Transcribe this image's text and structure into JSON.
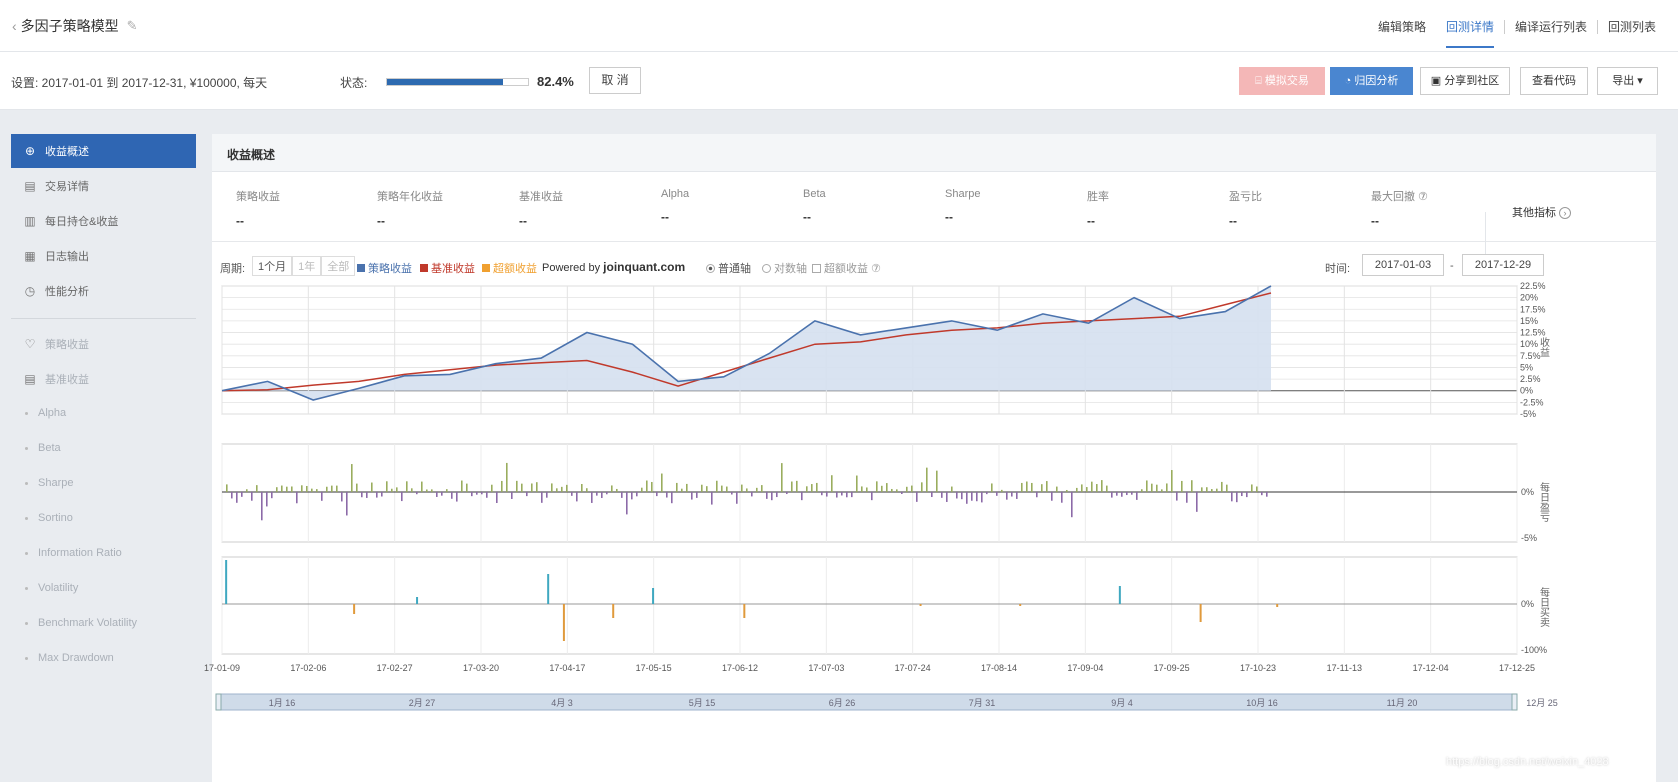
{
  "header": {
    "title": "多因子策略模型",
    "nav": [
      "编辑策略",
      "回测详情",
      "编译运行列表",
      "回测列表"
    ],
    "active_nav": 1
  },
  "settings": {
    "text": "设置:  2017-01-01 到 2017-12-31,  ¥100000,  每天",
    "status_label": "状态:",
    "progress": 0.824,
    "progress_text": "82.4%",
    "cancel_label": "取 消"
  },
  "toolbar": {
    "simulate_label": "模拟交易",
    "factor_label": "归因分析",
    "share_label": "分享到社区",
    "code_label": "查看代码",
    "export_label": "导出 ▾"
  },
  "sidebar": {
    "items": [
      {
        "label": "收益概述",
        "icon": "plus-circle-icon",
        "active": true
      },
      {
        "label": "交易详情",
        "icon": "document-icon"
      },
      {
        "label": "每日持仓&收益",
        "icon": "bar-chart-icon"
      },
      {
        "label": "日志输出",
        "icon": "log-icon"
      },
      {
        "label": "性能分析",
        "icon": "clock-icon"
      }
    ],
    "sub_items": [
      {
        "label": "策略收益",
        "icon": "bulb-icon"
      },
      {
        "label": "基准收益",
        "icon": "list-icon"
      }
    ],
    "dot_items": [
      "Alpha",
      "Beta",
      "Sharpe",
      "Sortino",
      "Information Ratio",
      "Volatility",
      "Benchmark Volatility",
      "Max Drawdown"
    ]
  },
  "panel": {
    "title": "收益概述",
    "metrics": [
      {
        "label": "策略收益",
        "value": "--"
      },
      {
        "label": "策略年化收益",
        "value": "--"
      },
      {
        "label": "基准收益",
        "value": "--"
      },
      {
        "label": "Alpha",
        "value": "--"
      },
      {
        "label": "Beta",
        "value": "--"
      },
      {
        "label": "Sharpe",
        "value": "--"
      },
      {
        "label": "胜率",
        "value": "--"
      },
      {
        "label": "盈亏比",
        "value": "--"
      },
      {
        "label": "最大回撤 ⑦",
        "value": "--"
      }
    ],
    "more_metrics": "其他指标",
    "controls": {
      "range_label": "周期:",
      "range_opts": [
        "1个月",
        "1年",
        "全部"
      ],
      "legend": [
        "策略收益",
        "基准收益",
        "超额收益"
      ],
      "powered": "Powered by",
      "brand": "joinquant.com",
      "axis_normal": "普通轴",
      "axis_log": "对数轴",
      "excess": "超额收益 ⑦",
      "time_label": "时间:",
      "date_from": "2017-01-03",
      "date_sep": "-",
      "date_to": "2017-12-29"
    },
    "right_labels": {
      "top": "收益",
      "mid": "每日盈亏",
      "bot": "每日买卖"
    }
  },
  "colors": {
    "strategy": "#4a72ad",
    "benchmark": "#c0392b",
    "excess": "#f0a030",
    "area": "#d5e0ef",
    "pos_bar": "#9aad5e",
    "neg_bar": "#8c6aa8",
    "buy_bar": "#3fa8c0",
    "sell_bar": "#e09a3c"
  },
  "chart_data": {
    "type": "line",
    "y_ticks": [
      "22.5%",
      "20%",
      "17.5%",
      "15%",
      "12.5%",
      "10%",
      "7.5%",
      "5%",
      "2.5%",
      "0%",
      "-2.5%",
      "-5%"
    ],
    "ylim": [
      -5,
      22.5
    ],
    "x_ticks": [
      "17-01-09",
      "17-02-06",
      "17-02-27",
      "17-03-20",
      "17-04-17",
      "17-05-15",
      "17-06-12",
      "17-07-03",
      "17-07-24",
      "17-08-14",
      "17-09-04",
      "17-09-25",
      "17-10-23",
      "17-11-13",
      "17-12-04",
      "17-12-25"
    ],
    "series": [
      {
        "name": "策略收益",
        "values": [
          0,
          2,
          -2,
          0.5,
          3.2,
          3.5,
          5.8,
          7,
          12.5,
          10,
          2,
          3,
          8,
          15,
          12,
          13.5,
          15,
          13,
          16.5,
          14.5,
          20,
          15.5,
          17,
          22.5
        ]
      },
      {
        "name": "基准收益",
        "values": [
          0,
          0.2,
          1.2,
          2,
          3.5,
          4.5,
          5.5,
          6,
          6.5,
          4,
          1,
          4,
          7,
          10,
          10.5,
          12,
          13,
          13.5,
          14.5,
          15,
          15.5,
          16,
          18.5,
          21
        ]
      }
    ],
    "mid_ylabels": [
      "0%",
      "-5%"
    ],
    "bot_ylabels": [
      "0%",
      "-100%"
    ],
    "navigator_labels": [
      "1月 16",
      "2月 27",
      "4月 3",
      "5月 15",
      "6月 26",
      "7月 31",
      "9月 4",
      "10月 16",
      "11月 20",
      "12月 25"
    ]
  },
  "watermark": "https://blog.csdn.net/weixin_4028"
}
